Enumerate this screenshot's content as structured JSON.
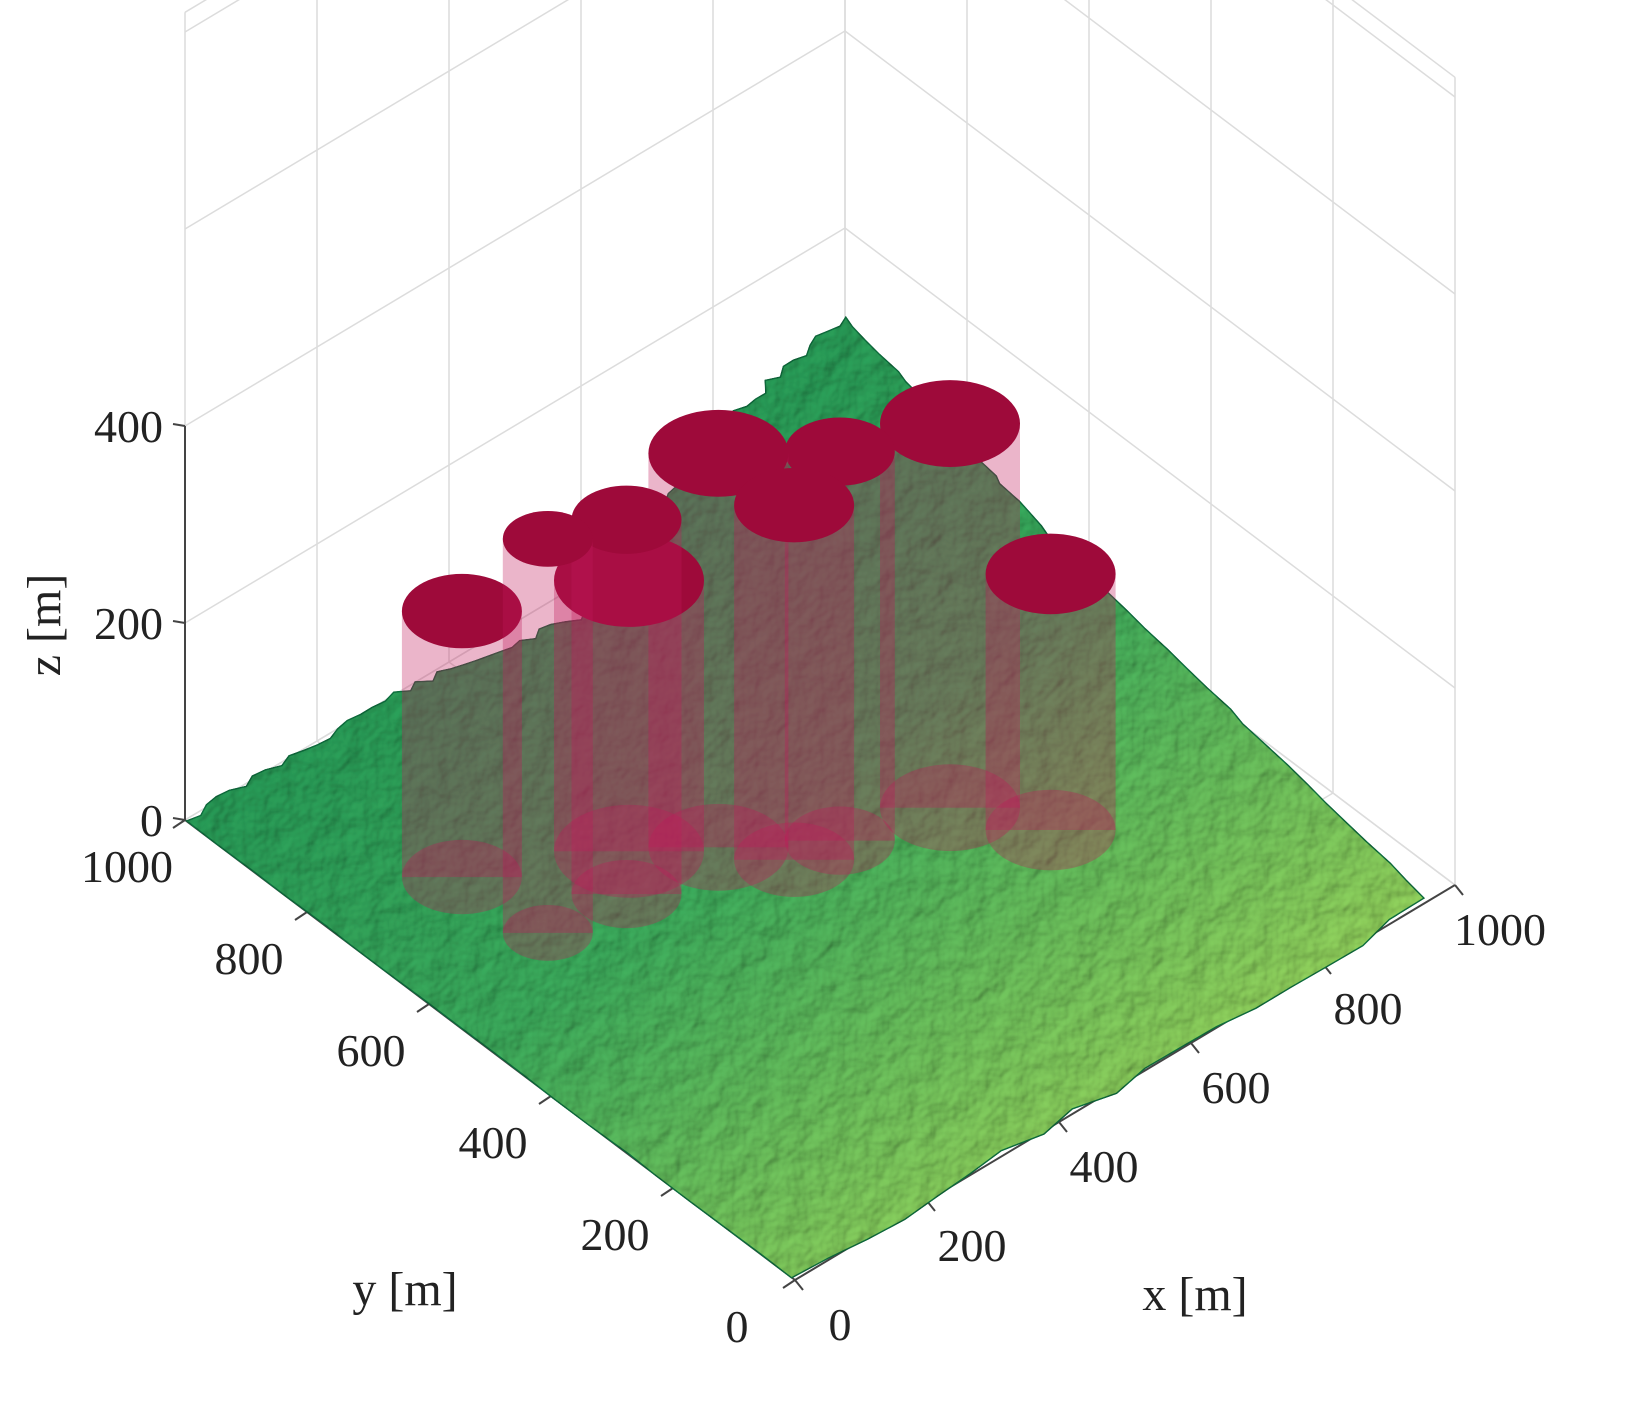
{
  "chart_data": {
    "type": "3d-surface",
    "title": "",
    "xlabel": "x [m]",
    "ylabel": "y [m]",
    "zlabel": "z [m]",
    "xlim": [
      0,
      1000
    ],
    "ylim": [
      0,
      1000
    ],
    "zlim": [
      0,
      400
    ],
    "xticks": [
      "0",
      "200",
      "400",
      "600",
      "800",
      "1000"
    ],
    "yticks": [
      "0",
      "200",
      "400",
      "600",
      "800",
      "1000"
    ],
    "zticks": [
      "0",
      "200",
      "400"
    ],
    "grid": true,
    "colors": {
      "cylinder": "#9e0a3a",
      "cylinder_body": "#c2185b",
      "terrain_low": "#138a52",
      "terrain_high": "#c6e65a",
      "grid": "#dcdcdc",
      "axis": "#444444"
    },
    "cylinders": [
      {
        "x": 180,
        "y": 600,
        "radius": 45,
        "top": 400
      },
      {
        "x": 290,
        "y": 590,
        "radius": 55,
        "top": 380
      },
      {
        "x": 420,
        "y": 580,
        "radius": 70,
        "top": 400
      },
      {
        "x": 530,
        "y": 500,
        "radius": 55,
        "top": 395
      },
      {
        "x": 660,
        "y": 460,
        "radius": 70,
        "top": 390
      },
      {
        "x": 470,
        "y": 510,
        "radius": 60,
        "top": 360
      },
      {
        "x": 170,
        "y": 730,
        "radius": 60,
        "top": 270
      },
      {
        "x": 340,
        "y": 640,
        "radius": 75,
        "top": 275
      },
      {
        "x": 720,
        "y": 360,
        "radius": 65,
        "top": 260
      }
    ],
    "terrain_outline": [
      {
        "x": 0,
        "y": 1000,
        "z": 0
      },
      {
        "x": 320,
        "y": 1000,
        "z": 0
      },
      {
        "x": 500,
        "y": 860,
        "z": 80
      },
      {
        "x": 680,
        "y": 900,
        "z": 150
      },
      {
        "x": 1000,
        "y": 1000,
        "z": 110
      },
      {
        "x": 1000,
        "y": 640,
        "z": 40
      },
      {
        "x": 960,
        "y": 0,
        "z": 0
      },
      {
        "x": 0,
        "y": 0,
        "z": 0
      }
    ]
  }
}
